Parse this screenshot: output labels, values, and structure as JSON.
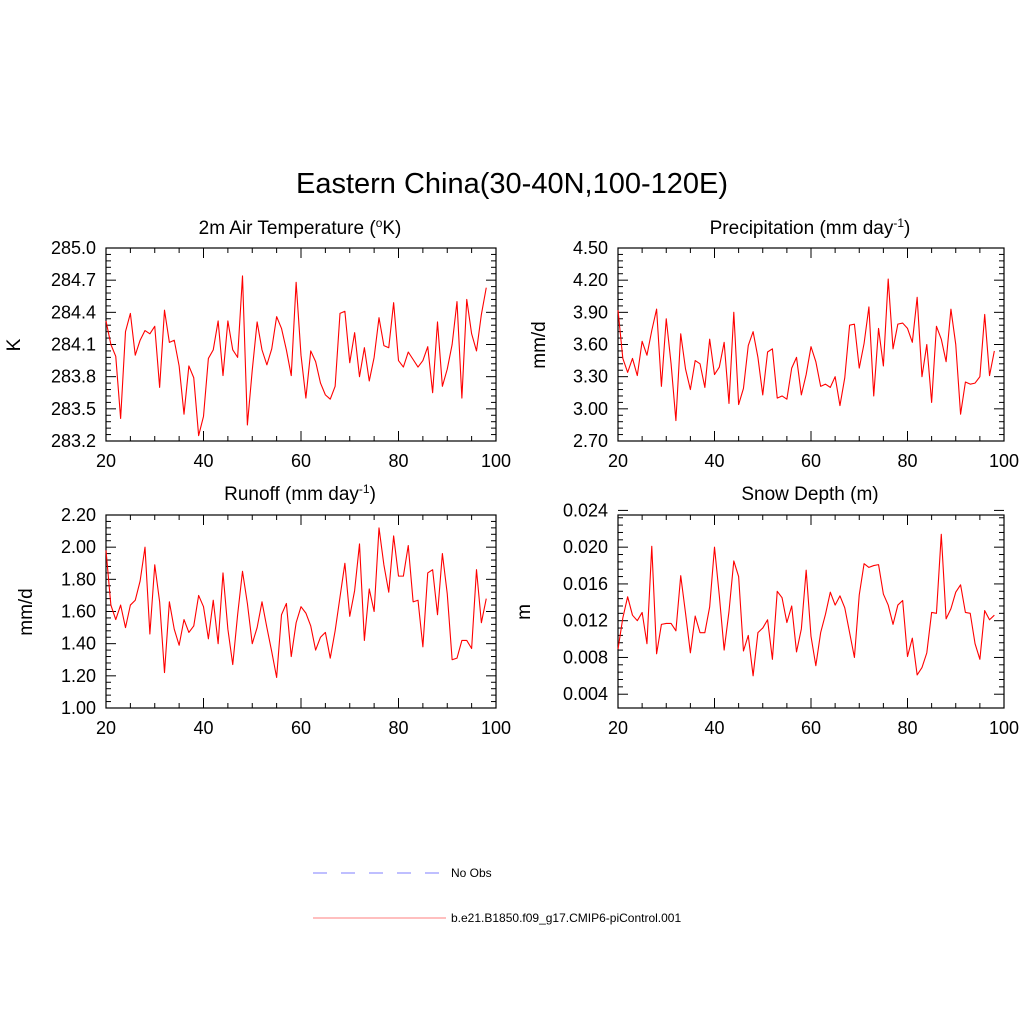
{
  "title": "Eastern China(30-40N,100-120E)",
  "legend": [
    {
      "label": "No Obs",
      "color": "#9999ff",
      "style": "dashed"
    },
    {
      "label": "b.e21.B1850.f09_g17.CMIP6-piControl.001",
      "color": "#ff9999",
      "style": "solid"
    }
  ],
  "colors": {
    "series": "#ff0000",
    "axis": "#000000"
  },
  "chart_data": [
    {
      "id": "temp",
      "type": "line",
      "title_main": "2m Air Temperature (",
      "title_sup": "o",
      "title_end": "K)",
      "ylabel": "K",
      "xlim": [
        20,
        100
      ],
      "ylim": [
        283.2,
        285.0
      ],
      "xticks": [
        "20",
        "40",
        "60",
        "80",
        "100"
      ],
      "yticks": [
        "283.2",
        "283.5",
        "283.8",
        "284.1",
        "284.4",
        "284.7",
        "285.0"
      ],
      "x_start": 20,
      "values": [
        284.32,
        284.1,
        283.99,
        283.41,
        284.22,
        284.39,
        284.0,
        284.14,
        284.23,
        284.2,
        284.27,
        283.7,
        284.42,
        284.12,
        284.14,
        283.9,
        283.45,
        283.9,
        283.79,
        283.25,
        283.43,
        283.97,
        284.05,
        284.32,
        283.81,
        284.32,
        284.05,
        283.98,
        284.74,
        283.35,
        283.86,
        284.31,
        284.05,
        283.91,
        284.06,
        284.36,
        284.25,
        284.05,
        283.81,
        284.68,
        284.0,
        283.6,
        284.04,
        283.94,
        283.74,
        283.63,
        283.59,
        283.71,
        284.39,
        284.41,
        283.93,
        284.21,
        283.8,
        284.07,
        283.76,
        283.98,
        284.35,
        284.09,
        284.07,
        284.49,
        283.95,
        283.89,
        284.03,
        283.96,
        283.89,
        283.95,
        284.08,
        283.65,
        284.31,
        283.71,
        283.87,
        284.1,
        284.5,
        283.6,
        284.52,
        284.2,
        284.04,
        284.38,
        284.63
      ]
    },
    {
      "id": "precip",
      "type": "line",
      "title_main": "Precipitation (mm day",
      "title_sup": "-1",
      "title_end": ")",
      "ylabel": "mm/d",
      "xlim": [
        20,
        100
      ],
      "ylim": [
        2.7,
        4.5
      ],
      "xticks": [
        "20",
        "40",
        "60",
        "80",
        "100"
      ],
      "yticks": [
        "2.70",
        "3.00",
        "3.30",
        "3.60",
        "3.90",
        "4.20",
        "4.50"
      ],
      "x_start": 20,
      "values": [
        3.92,
        3.47,
        3.34,
        3.47,
        3.31,
        3.63,
        3.5,
        3.73,
        3.93,
        3.21,
        3.84,
        3.42,
        2.89,
        3.7,
        3.37,
        3.18,
        3.45,
        3.42,
        3.2,
        3.65,
        3.32,
        3.39,
        3.62,
        3.05,
        3.9,
        3.04,
        3.19,
        3.59,
        3.72,
        3.48,
        3.13,
        3.53,
        3.56,
        3.1,
        3.12,
        3.09,
        3.38,
        3.48,
        3.13,
        3.32,
        3.58,
        3.44,
        3.21,
        3.23,
        3.2,
        3.3,
        3.03,
        3.29,
        3.78,
        3.79,
        3.38,
        3.61,
        3.95,
        3.12,
        3.75,
        3.4,
        4.21,
        3.56,
        3.79,
        3.8,
        3.75,
        3.62,
        4.04,
        3.3,
        3.6,
        3.06,
        3.77,
        3.65,
        3.44,
        3.93,
        3.6,
        2.95,
        3.25,
        3.23,
        3.24,
        3.3,
        3.88,
        3.31,
        3.54
      ]
    },
    {
      "id": "runoff",
      "type": "line",
      "title_main": "Runoff (mm day",
      "title_sup": "-1",
      "title_end": ")",
      "ylabel": "mm/d",
      "xlim": [
        20,
        100
      ],
      "ylim": [
        1.0,
        2.2
      ],
      "xticks": [
        "20",
        "40",
        "60",
        "80",
        "100"
      ],
      "yticks": [
        "1.00",
        "1.20",
        "1.40",
        "1.60",
        "1.80",
        "2.00",
        "2.20"
      ],
      "x_start": 20,
      "values": [
        1.98,
        1.64,
        1.55,
        1.64,
        1.5,
        1.64,
        1.67,
        1.79,
        2.0,
        1.46,
        1.89,
        1.66,
        1.22,
        1.66,
        1.49,
        1.39,
        1.55,
        1.47,
        1.51,
        1.7,
        1.63,
        1.43,
        1.67,
        1.4,
        1.84,
        1.49,
        1.27,
        1.58,
        1.85,
        1.65,
        1.4,
        1.5,
        1.66,
        1.5,
        1.35,
        1.19,
        1.58,
        1.65,
        1.32,
        1.53,
        1.63,
        1.59,
        1.51,
        1.36,
        1.44,
        1.47,
        1.31,
        1.48,
        1.69,
        1.9,
        1.57,
        1.73,
        2.02,
        1.42,
        1.74,
        1.6,
        2.12,
        1.89,
        1.72,
        2.07,
        1.82,
        1.82,
        2.01,
        1.66,
        1.67,
        1.38,
        1.84,
        1.86,
        1.58,
        1.96,
        1.71,
        1.3,
        1.31,
        1.42,
        1.42,
        1.37,
        1.86,
        1.53,
        1.68
      ]
    },
    {
      "id": "snow",
      "type": "line",
      "title_main": "Snow Depth (m)",
      "title_sup": "",
      "title_end": "",
      "ylabel": "m",
      "xlim": [
        20,
        100
      ],
      "ylim": [
        0.0025,
        0.0235
      ],
      "xticks": [
        "20",
        "40",
        "60",
        "80",
        "100"
      ],
      "yticks": [
        "0.004",
        "0.008",
        "0.012",
        "0.016",
        "0.020",
        "0.024"
      ],
      "ytick_values": [
        0.004,
        0.008,
        0.012,
        0.016,
        0.02,
        0.024
      ],
      "x_start": 20,
      "values": [
        0.0089,
        0.0123,
        0.0146,
        0.0126,
        0.012,
        0.0129,
        0.0095,
        0.0201,
        0.0084,
        0.0116,
        0.0117,
        0.0117,
        0.0109,
        0.0169,
        0.0128,
        0.0085,
        0.0125,
        0.0107,
        0.0107,
        0.0135,
        0.02,
        0.0147,
        0.0088,
        0.013,
        0.0185,
        0.0168,
        0.0087,
        0.0104,
        0.006,
        0.0107,
        0.0112,
        0.0121,
        0.0078,
        0.0152,
        0.0145,
        0.0118,
        0.0136,
        0.0086,
        0.0111,
        0.0175,
        0.0103,
        0.0071,
        0.0107,
        0.0127,
        0.0151,
        0.0137,
        0.0147,
        0.0134,
        0.0107,
        0.008,
        0.0148,
        0.0182,
        0.0178,
        0.018,
        0.0181,
        0.0149,
        0.0137,
        0.0116,
        0.0137,
        0.0142,
        0.0081,
        0.0101,
        0.0061,
        0.0069,
        0.0085,
        0.0129,
        0.0128,
        0.0214,
        0.0122,
        0.0133,
        0.0151,
        0.0159,
        0.0129,
        0.0128,
        0.0095,
        0.0078,
        0.0131,
        0.0121,
        0.0126
      ]
    }
  ]
}
